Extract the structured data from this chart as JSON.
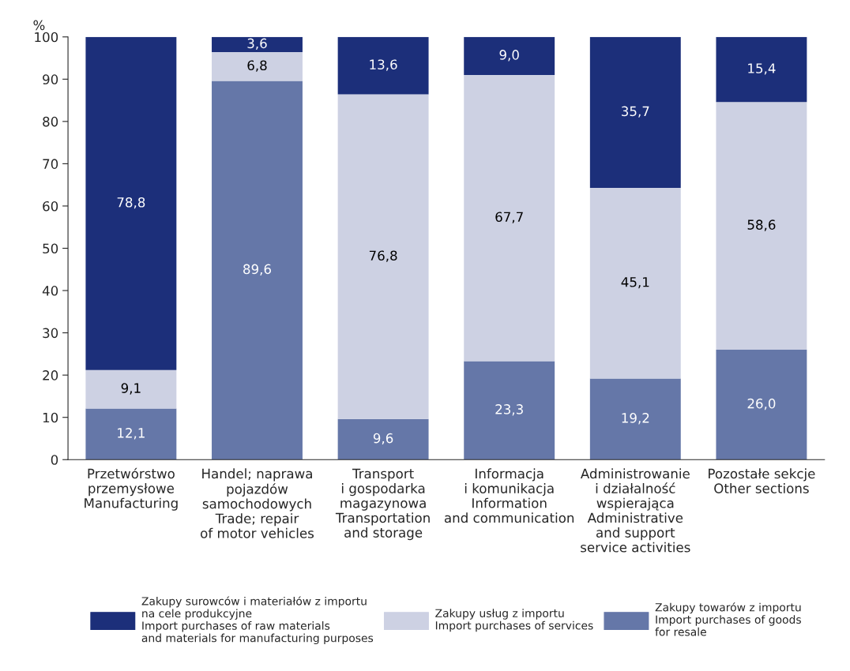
{
  "chart_data": {
    "type": "bar",
    "stacked": true,
    "ylabel": "%",
    "categories": [
      "Przetwórstwo\nprzemysłowe\nManufacturing",
      "Handel; naprawa\npojazdów\nsamochodowych\nTrade; repair\nof motor vehicles",
      "Transport\ni gospodarka\nmagazynowa\nTransportation\nand storage",
      "Informacja\ni komunikacja\nInformation\nand communication",
      "Administrowanie\ni działalność\nwspierająca\nAdministrative\nand support\nservice activities",
      "Pozostałe sekcje\nOther sections"
    ],
    "series": [
      {
        "name": "Zakupy towarów z importu\nImport purchases of goods\nfor resale",
        "color": "#6577a8",
        "values": [
          12.1,
          89.6,
          9.6,
          23.3,
          19.2,
          26.0
        ],
        "value_labels": [
          "12,1",
          "89,6",
          "9,6",
          "23,3",
          "19,2",
          "26,0"
        ]
      },
      {
        "name": "Zakupy usług z importu\nImport purchases of services",
        "color": "#cdd1e3",
        "values": [
          9.1,
          6.8,
          76.8,
          67.7,
          45.1,
          58.6
        ],
        "value_labels": [
          "9,1",
          "6,8",
          "76,8",
          "67,7",
          "45,1",
          "58,6"
        ]
      },
      {
        "name": "Zakupy surowców i materiałów z importu\nna cele produkcyjne\nImport purchases of raw materials\nand materials for manufacturing purposes",
        "color": "#1c2f7a",
        "values": [
          78.8,
          3.6,
          13.6,
          9.0,
          35.7,
          15.4
        ],
        "value_labels": [
          "78,8",
          "3,6",
          "13,6",
          "9,0",
          "35,7",
          "15,4"
        ]
      }
    ],
    "ylim": [
      0,
      100
    ],
    "yticks": [
      0,
      10,
      20,
      30,
      40,
      50,
      60,
      70,
      80,
      90,
      100
    ],
    "grid": false,
    "legend": "bottom"
  }
}
